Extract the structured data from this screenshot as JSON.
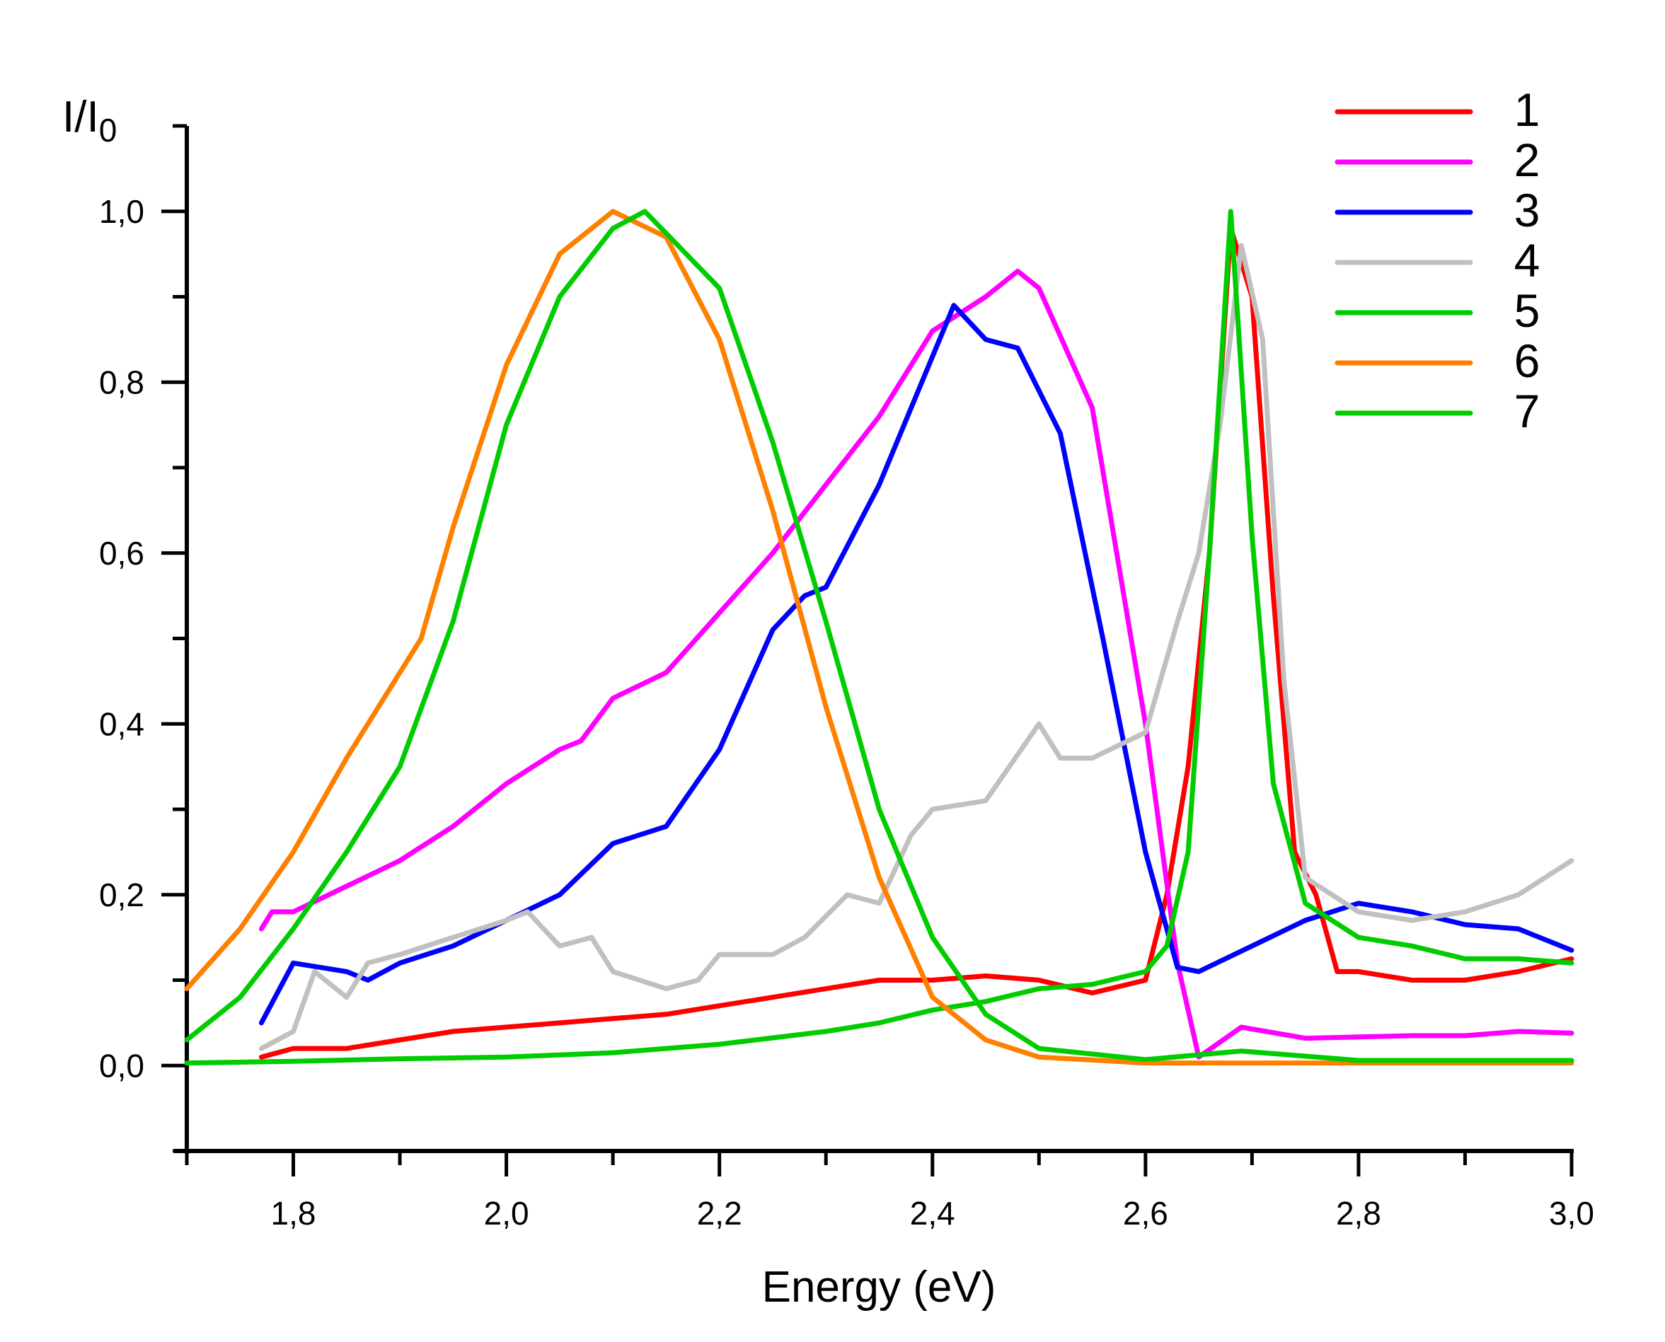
{
  "chart_data": {
    "type": "line",
    "title": "",
    "xlabel": "Energy (eV)",
    "ylabel": "I/I",
    "ylabel_subscript": "0",
    "xlim": [
      1.7,
      3.0
    ],
    "ylim": [
      -0.1,
      1.1
    ],
    "grid": false,
    "legend_position": "top-right",
    "x_ticks": [
      {
        "value": 1.8,
        "label": "1,8"
      },
      {
        "value": 2.0,
        "label": "2,0"
      },
      {
        "value": 2.2,
        "label": "2,2"
      },
      {
        "value": 2.4,
        "label": "2,4"
      },
      {
        "value": 2.6,
        "label": "2,6"
      },
      {
        "value": 2.8,
        "label": "2,8"
      },
      {
        "value": 3.0,
        "label": "3,0"
      }
    ],
    "x_minor_ticks": [
      1.7,
      1.9,
      2.1,
      2.3,
      2.5,
      2.7,
      2.9
    ],
    "y_ticks": [
      {
        "value": 0.0,
        "label": "0,0"
      },
      {
        "value": 0.2,
        "label": "0,2"
      },
      {
        "value": 0.4,
        "label": "0,4"
      },
      {
        "value": 0.6,
        "label": "0,6"
      },
      {
        "value": 0.8,
        "label": "0,8"
      },
      {
        "value": 1.0,
        "label": "1,0"
      }
    ],
    "y_minor_ticks": [
      -0.1,
      0.1,
      0.3,
      0.5,
      0.7,
      0.9,
      1.1
    ],
    "series": [
      {
        "name": "1",
        "color": "#ff0000",
        "x": [
          1.77,
          1.8,
          1.85,
          1.9,
          1.95,
          2.0,
          2.05,
          2.1,
          2.15,
          2.2,
          2.25,
          2.3,
          2.35,
          2.4,
          2.45,
          2.5,
          2.55,
          2.6,
          2.62,
          2.64,
          2.66,
          2.68,
          2.7,
          2.72,
          2.74,
          2.76,
          2.78,
          2.8,
          2.85,
          2.9,
          2.95,
          3.0
        ],
        "y": [
          0.01,
          0.02,
          0.02,
          0.03,
          0.04,
          0.045,
          0.05,
          0.055,
          0.06,
          0.07,
          0.08,
          0.09,
          0.1,
          0.1,
          0.105,
          0.1,
          0.085,
          0.1,
          0.2,
          0.35,
          0.6,
          0.98,
          0.9,
          0.55,
          0.25,
          0.2,
          0.11,
          0.11,
          0.1,
          0.1,
          0.11,
          0.125
        ]
      },
      {
        "name": "2",
        "color": "#ff00ff",
        "x": [
          1.77,
          1.78,
          1.8,
          1.85,
          1.9,
          1.95,
          2.0,
          2.05,
          2.07,
          2.1,
          2.15,
          2.2,
          2.25,
          2.3,
          2.35,
          2.4,
          2.45,
          2.48,
          2.5,
          2.55,
          2.6,
          2.63,
          2.65,
          2.69,
          2.75,
          2.85,
          2.9,
          2.95,
          3.0
        ],
        "y": [
          0.16,
          0.18,
          0.18,
          0.21,
          0.24,
          0.28,
          0.33,
          0.37,
          0.38,
          0.43,
          0.46,
          0.53,
          0.6,
          0.68,
          0.76,
          0.86,
          0.9,
          0.93,
          0.91,
          0.77,
          0.4,
          0.12,
          0.01,
          0.045,
          0.032,
          0.035,
          0.035,
          0.04,
          0.038
        ]
      },
      {
        "name": "3",
        "color": "#0000ff",
        "x": [
          1.77,
          1.8,
          1.85,
          1.87,
          1.9,
          1.95,
          2.0,
          2.05,
          2.1,
          2.15,
          2.2,
          2.25,
          2.28,
          2.3,
          2.35,
          2.4,
          2.42,
          2.45,
          2.48,
          2.52,
          2.56,
          2.6,
          2.63,
          2.65,
          2.7,
          2.75,
          2.8,
          2.85,
          2.9,
          2.95,
          3.0
        ],
        "y": [
          0.05,
          0.12,
          0.11,
          0.1,
          0.12,
          0.14,
          0.17,
          0.2,
          0.26,
          0.28,
          0.37,
          0.51,
          0.55,
          0.56,
          0.68,
          0.83,
          0.89,
          0.85,
          0.84,
          0.74,
          0.5,
          0.25,
          0.115,
          0.11,
          0.14,
          0.17,
          0.19,
          0.18,
          0.165,
          0.16,
          0.135
        ]
      },
      {
        "name": "4",
        "color": "#c0c0c0",
        "x": [
          1.77,
          1.8,
          1.82,
          1.85,
          1.87,
          1.9,
          1.95,
          2.0,
          2.02,
          2.05,
          2.08,
          2.1,
          2.15,
          2.18,
          2.2,
          2.25,
          2.28,
          2.32,
          2.35,
          2.38,
          2.4,
          2.45,
          2.5,
          2.52,
          2.55,
          2.6,
          2.63,
          2.65,
          2.67,
          2.69,
          2.71,
          2.73,
          2.75,
          2.8,
          2.85,
          2.9,
          2.95,
          3.0
        ],
        "y": [
          0.02,
          0.04,
          0.11,
          0.08,
          0.12,
          0.13,
          0.15,
          0.17,
          0.18,
          0.14,
          0.15,
          0.11,
          0.09,
          0.1,
          0.13,
          0.13,
          0.15,
          0.2,
          0.19,
          0.27,
          0.3,
          0.31,
          0.4,
          0.36,
          0.36,
          0.39,
          0.52,
          0.6,
          0.75,
          0.96,
          0.85,
          0.45,
          0.22,
          0.18,
          0.17,
          0.18,
          0.2,
          0.24
        ]
      },
      {
        "name": "5",
        "color": "#00cc00",
        "x": [
          1.7,
          1.8,
          1.9,
          2.0,
          2.1,
          2.2,
          2.3,
          2.35,
          2.4,
          2.45,
          2.5,
          2.55,
          2.6,
          2.62,
          2.64,
          2.66,
          2.68,
          2.7,
          2.72,
          2.75,
          2.8,
          2.85,
          2.9,
          2.95,
          3.0
        ],
        "y": [
          0.003,
          0.005,
          0.008,
          0.01,
          0.015,
          0.025,
          0.04,
          0.05,
          0.065,
          0.075,
          0.09,
          0.095,
          0.11,
          0.14,
          0.25,
          0.6,
          1.0,
          0.62,
          0.33,
          0.19,
          0.15,
          0.14,
          0.125,
          0.125,
          0.12
        ]
      },
      {
        "name": "6",
        "color": "#ff8000",
        "x": [
          1.7,
          1.75,
          1.8,
          1.85,
          1.9,
          1.92,
          1.95,
          2.0,
          2.05,
          2.1,
          2.15,
          2.2,
          2.25,
          2.3,
          2.35,
          2.4,
          2.45,
          2.5,
          2.6,
          3.0
        ],
        "y": [
          0.09,
          0.16,
          0.25,
          0.36,
          0.46,
          0.5,
          0.63,
          0.82,
          0.95,
          1.0,
          0.97,
          0.85,
          0.65,
          0.42,
          0.22,
          0.08,
          0.03,
          0.01,
          0.003,
          0.003
        ]
      },
      {
        "name": "7",
        "color": "#00cc00",
        "x": [
          1.7,
          1.75,
          1.8,
          1.85,
          1.9,
          1.95,
          2.0,
          2.05,
          2.1,
          2.13,
          2.2,
          2.25,
          2.3,
          2.35,
          2.4,
          2.45,
          2.5,
          2.6,
          2.69,
          2.8,
          3.0
        ],
        "y": [
          0.03,
          0.08,
          0.16,
          0.25,
          0.35,
          0.52,
          0.75,
          0.9,
          0.98,
          1.0,
          0.91,
          0.73,
          0.52,
          0.3,
          0.15,
          0.06,
          0.02,
          0.007,
          0.017,
          0.006,
          0.006
        ]
      }
    ]
  }
}
